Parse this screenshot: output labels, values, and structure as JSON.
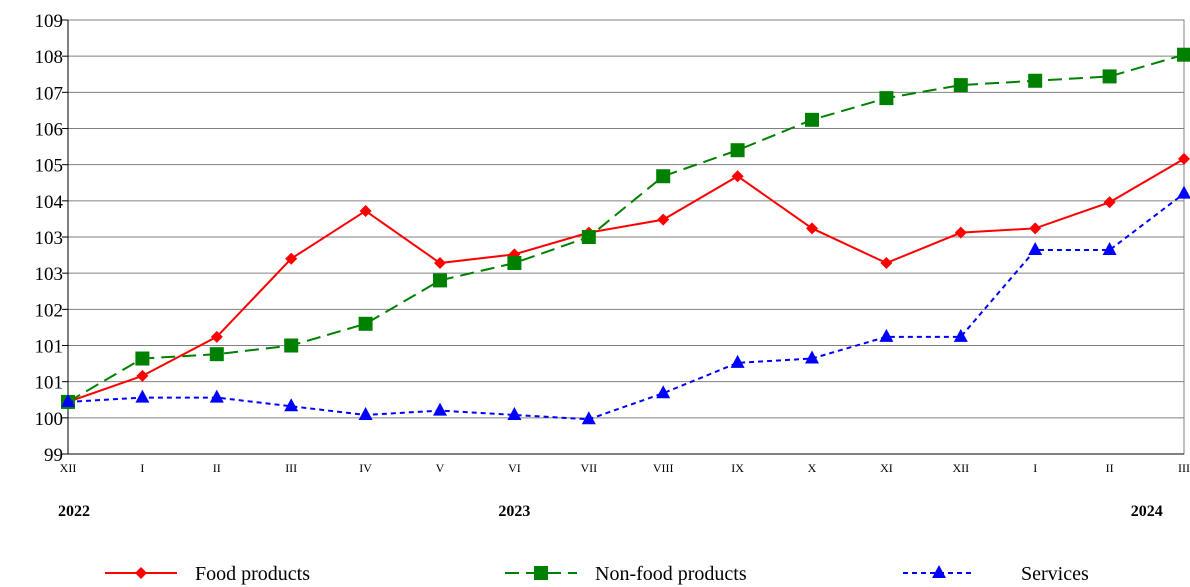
{
  "chart_data": {
    "type": "line",
    "title": "",
    "xlabel": "",
    "ylabel": "",
    "ylim": [
      99,
      109
    ],
    "y_ticks": [
      "99",
      "100",
      "101",
      "101",
      "102",
      "103",
      "103",
      "104",
      "105",
      "106",
      "107",
      "108",
      "109"
    ],
    "categories": [
      "XII",
      "I",
      "II",
      "III",
      "IV",
      "V",
      "VI",
      "VII",
      "VIII",
      "IX",
      "X",
      "XI",
      "XII",
      "I",
      "II",
      "III"
    ],
    "year_labels": [
      {
        "label": "2022",
        "at_index": 0
      },
      {
        "label": "2023",
        "at_index": 6
      },
      {
        "label": "2024",
        "at_index": 14.5
      }
    ],
    "grid": true,
    "legend_position": "bottom",
    "series": [
      {
        "name": "Food products",
        "color": "#ff0000",
        "line_style": "solid",
        "marker": "diamond",
        "values": [
          100.2,
          100.8,
          101.7,
          103.5,
          104.6,
          103.4,
          103.6,
          104.1,
          104.4,
          105.4,
          104.2,
          103.4,
          104.1,
          104.2,
          104.8,
          105.8
        ]
      },
      {
        "name": "Non-food products",
        "color": "#008000",
        "line_style": "dashed",
        "marker": "square",
        "values": [
          100.2,
          101.2,
          101.3,
          101.5,
          102.0,
          103.0,
          103.4,
          104.0,
          105.4,
          106.0,
          106.7,
          107.2,
          107.5,
          107.6,
          107.7,
          108.2
        ]
      },
      {
        "name": "Services",
        "color": "#0000ff",
        "line_style": "dotted",
        "marker": "triangle",
        "values": [
          100.2,
          100.3,
          100.3,
          100.1,
          99.9,
          100.0,
          99.9,
          99.8,
          100.4,
          101.1,
          101.2,
          101.7,
          101.7,
          103.7,
          103.7,
          105.0
        ]
      }
    ]
  }
}
